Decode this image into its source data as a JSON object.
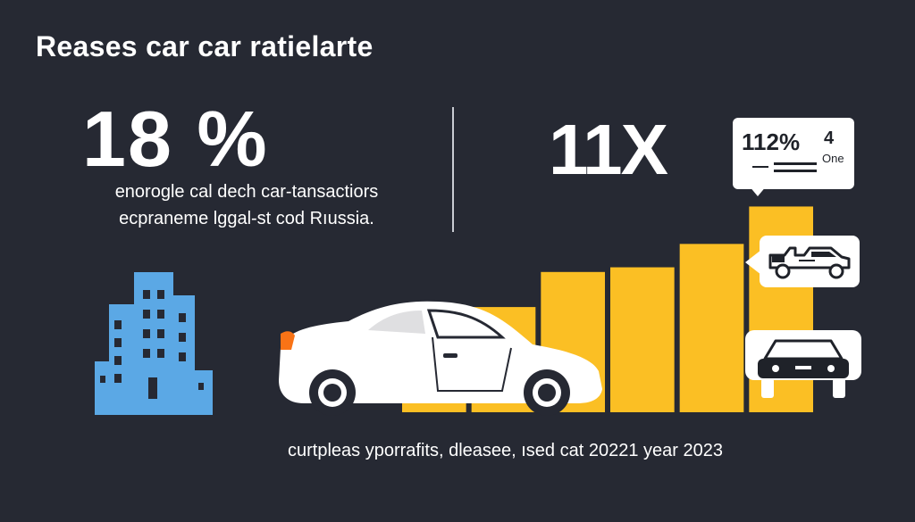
{
  "title": "Reases car car ratielarte",
  "left_stat": {
    "value": "18 %",
    "description_line1": "enorogle cal dech car-tansactiors",
    "description_line2": "ecpraneme lggal-st cod Rıussia."
  },
  "right_stat": {
    "value": "11X"
  },
  "callout": {
    "value": "112%",
    "unit": "4",
    "sub": "One"
  },
  "footer": "curtpleas yporrafits, dleasee, ısed cat 20221 year 2023",
  "chart_data": {
    "type": "bar",
    "values": [
      35,
      45,
      60,
      62,
      72,
      88
    ],
    "ylim": [
      0,
      100
    ]
  },
  "colors": {
    "background": "#262933",
    "bar": "#FBBF24",
    "building": "#5BA8E5",
    "text": "#FFFFFF"
  },
  "icons": [
    "office-building-icon",
    "car-icon",
    "tow-truck-icon",
    "car-front-icon"
  ]
}
